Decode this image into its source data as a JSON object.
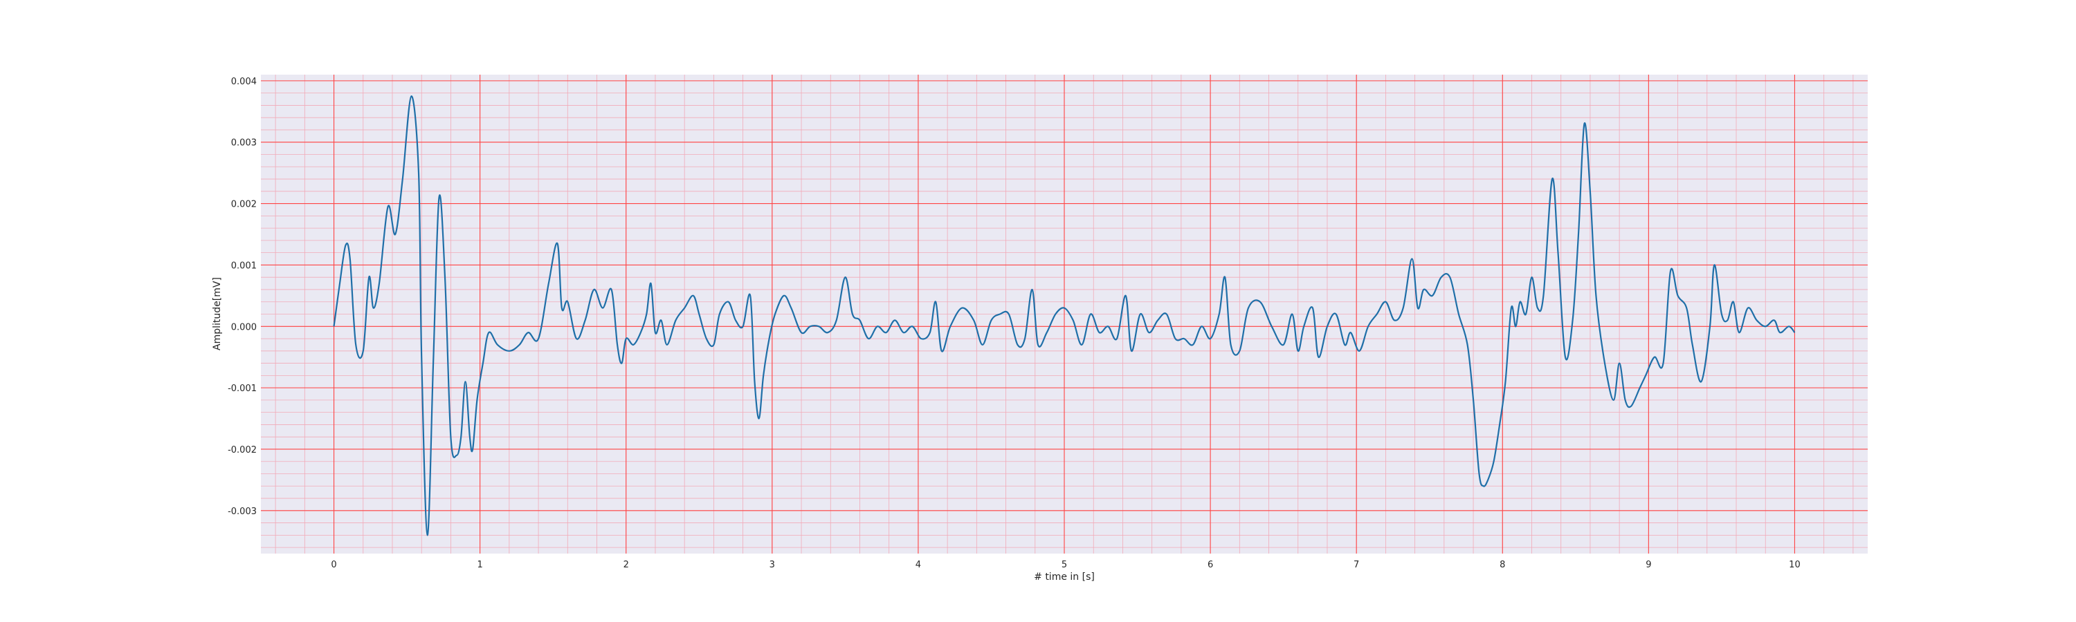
{
  "chart_data": {
    "type": "line",
    "title": "",
    "xlabel": "# time in [s]",
    "ylabel": "Amplitude[mV]",
    "xlim": [
      -0.5,
      10.5
    ],
    "ylim": [
      -0.0037,
      0.0041
    ],
    "x_ticks": [
      0,
      1,
      2,
      3,
      4,
      5,
      6,
      7,
      8,
      9,
      10
    ],
    "x_tick_labels": [
      "0",
      "1",
      "2",
      "3",
      "4",
      "5",
      "6",
      "7",
      "8",
      "9",
      "10"
    ],
    "y_ticks": [
      -0.003,
      -0.002,
      -0.001,
      0.0,
      0.001,
      0.002,
      0.003,
      0.004
    ],
    "y_tick_labels": [
      "-0.003",
      "-0.002",
      "-0.001",
      "0.000",
      "0.001",
      "0.002",
      "0.003",
      "0.004"
    ],
    "grid": {
      "major": true,
      "minor": true,
      "major_color": "#ff4444",
      "minor_color": "#f2aab8"
    },
    "background_color": "#eae9f3",
    "series": [
      {
        "color": "#1f6fa8",
        "points": [
          [
            0.0,
            0.0
          ],
          [
            0.04,
            0.0007
          ],
          [
            0.08,
            0.00132
          ],
          [
            0.11,
            0.0011
          ],
          [
            0.15,
            -0.0003
          ],
          [
            0.2,
            -0.0004
          ],
          [
            0.24,
            0.0008
          ],
          [
            0.27,
            0.0003
          ],
          [
            0.31,
            0.0007
          ],
          [
            0.37,
            0.00195
          ],
          [
            0.42,
            0.0015
          ],
          [
            0.47,
            0.0024
          ],
          [
            0.53,
            0.00375
          ],
          [
            0.58,
            0.0025
          ],
          [
            0.6,
            -0.0005
          ],
          [
            0.64,
            -0.0034
          ],
          [
            0.68,
            -0.0006
          ],
          [
            0.72,
            0.0021
          ],
          [
            0.76,
            0.0008
          ],
          [
            0.8,
            -0.0018
          ],
          [
            0.84,
            -0.0021
          ],
          [
            0.87,
            -0.0018
          ],
          [
            0.9,
            -0.0009
          ],
          [
            0.93,
            -0.0018
          ],
          [
            0.95,
            -0.002
          ],
          [
            0.98,
            -0.0012
          ],
          [
            1.02,
            -0.0006
          ],
          [
            1.06,
            -0.0001
          ],
          [
            1.12,
            -0.0003
          ],
          [
            1.2,
            -0.0004
          ],
          [
            1.27,
            -0.0003
          ],
          [
            1.33,
            -0.0001
          ],
          [
            1.4,
            -0.0002
          ],
          [
            1.47,
            0.0007
          ],
          [
            1.53,
            0.00135
          ],
          [
            1.56,
            0.0003
          ],
          [
            1.6,
            0.0004
          ],
          [
            1.66,
            -0.0002
          ],
          [
            1.72,
            0.0001
          ],
          [
            1.78,
            0.0006
          ],
          [
            1.84,
            0.0003
          ],
          [
            1.9,
            0.0006
          ],
          [
            1.94,
            -0.0003
          ],
          [
            1.97,
            -0.0006
          ],
          [
            2.0,
            -0.0002
          ],
          [
            2.05,
            -0.0003
          ],
          [
            2.1,
            -0.0001
          ],
          [
            2.14,
            0.0002
          ],
          [
            2.17,
            0.0007
          ],
          [
            2.2,
            -0.0001
          ],
          [
            2.24,
            0.0001
          ],
          [
            2.28,
            -0.0003
          ],
          [
            2.34,
            0.0001
          ],
          [
            2.4,
            0.0003
          ],
          [
            2.46,
            0.0005
          ],
          [
            2.5,
            0.0002
          ],
          [
            2.55,
            -0.0002
          ],
          [
            2.6,
            -0.0003
          ],
          [
            2.64,
            0.0002
          ],
          [
            2.7,
            0.0004
          ],
          [
            2.75,
            0.0001
          ],
          [
            2.8,
            0.0
          ],
          [
            2.85,
            0.0005
          ],
          [
            2.88,
            -0.0009
          ],
          [
            2.91,
            -0.0015
          ],
          [
            2.94,
            -0.0008
          ],
          [
            2.98,
            -0.0002
          ],
          [
            3.02,
            0.0002
          ],
          [
            3.08,
            0.0005
          ],
          [
            3.13,
            0.0003
          ],
          [
            3.2,
            -0.0001
          ],
          [
            3.26,
            0.0
          ],
          [
            3.32,
            0.0
          ],
          [
            3.38,
            -0.0001
          ],
          [
            3.44,
            0.0001
          ],
          [
            3.5,
            0.0008
          ],
          [
            3.55,
            0.0002
          ],
          [
            3.6,
            0.0001
          ],
          [
            3.66,
            -0.0002
          ],
          [
            3.72,
            0.0
          ],
          [
            3.78,
            -0.0001
          ],
          [
            3.84,
            0.0001
          ],
          [
            3.9,
            -0.0001
          ],
          [
            3.96,
            0.0
          ],
          [
            4.02,
            -0.0002
          ],
          [
            4.08,
            -0.0001
          ],
          [
            4.12,
            0.0004
          ],
          [
            4.16,
            -0.0004
          ],
          [
            4.22,
            0.0
          ],
          [
            4.3,
            0.0003
          ],
          [
            4.38,
            0.0001
          ],
          [
            4.44,
            -0.0003
          ],
          [
            4.5,
            0.0001
          ],
          [
            4.56,
            0.0002
          ],
          [
            4.62,
            0.0002
          ],
          [
            4.68,
            -0.0003
          ],
          [
            4.73,
            -0.0002
          ],
          [
            4.78,
            0.0006
          ],
          [
            4.82,
            -0.0003
          ],
          [
            4.88,
            -0.0001
          ],
          [
            4.94,
            0.0002
          ],
          [
            5.0,
            0.0003
          ],
          [
            5.06,
            0.0001
          ],
          [
            5.12,
            -0.0003
          ],
          [
            5.18,
            0.0002
          ],
          [
            5.24,
            -0.0001
          ],
          [
            5.3,
            0.0
          ],
          [
            5.36,
            -0.0002
          ],
          [
            5.42,
            0.0005
          ],
          [
            5.46,
            -0.0004
          ],
          [
            5.52,
            0.0002
          ],
          [
            5.58,
            -0.0001
          ],
          [
            5.64,
            0.0001
          ],
          [
            5.7,
            0.0002
          ],
          [
            5.76,
            -0.0002
          ],
          [
            5.82,
            -0.0002
          ],
          [
            5.88,
            -0.0003
          ],
          [
            5.94,
            0.0
          ],
          [
            6.0,
            -0.0002
          ],
          [
            6.06,
            0.0002
          ],
          [
            6.1,
            0.0008
          ],
          [
            6.14,
            -0.0003
          ],
          [
            6.2,
            -0.0004
          ],
          [
            6.26,
            0.0003
          ],
          [
            6.34,
            0.0004
          ],
          [
            6.42,
            0.0
          ],
          [
            6.5,
            -0.0003
          ],
          [
            6.56,
            0.0002
          ],
          [
            6.6,
            -0.0004
          ],
          [
            6.64,
            0.0
          ],
          [
            6.7,
            0.0003
          ],
          [
            6.74,
            -0.0005
          ],
          [
            6.8,
            0.0
          ],
          [
            6.86,
            0.0002
          ],
          [
            6.92,
            -0.0003
          ],
          [
            6.96,
            -0.0001
          ],
          [
            7.02,
            -0.0004
          ],
          [
            7.08,
            0.0
          ],
          [
            7.14,
            0.0002
          ],
          [
            7.2,
            0.0004
          ],
          [
            7.26,
            0.0001
          ],
          [
            7.32,
            0.0003
          ],
          [
            7.38,
            0.0011
          ],
          [
            7.42,
            0.0003
          ],
          [
            7.46,
            0.0006
          ],
          [
            7.52,
            0.0005
          ],
          [
            7.58,
            0.0008
          ],
          [
            7.64,
            0.0008
          ],
          [
            7.7,
            0.0002
          ],
          [
            7.76,
            -0.0003
          ],
          [
            7.8,
            -0.0012
          ],
          [
            7.84,
            -0.0024
          ],
          [
            7.87,
            -0.0026
          ],
          [
            7.9,
            -0.0025
          ],
          [
            7.94,
            -0.0022
          ],
          [
            7.98,
            -0.0016
          ],
          [
            8.02,
            -0.0009
          ],
          [
            8.06,
            0.0003
          ],
          [
            8.09,
            0.0
          ],
          [
            8.12,
            0.0004
          ],
          [
            8.16,
            0.0002
          ],
          [
            8.2,
            0.0008
          ],
          [
            8.24,
            0.0003
          ],
          [
            8.28,
            0.0005
          ],
          [
            8.34,
            0.0024
          ],
          [
            8.38,
            0.0012
          ],
          [
            8.43,
            -0.0005
          ],
          [
            8.48,
            0.0001
          ],
          [
            8.52,
            0.0015
          ],
          [
            8.56,
            0.0033
          ],
          [
            8.6,
            0.0022
          ],
          [
            8.64,
            0.0005
          ],
          [
            8.7,
            -0.0006
          ],
          [
            8.76,
            -0.0012
          ],
          [
            8.8,
            -0.0006
          ],
          [
            8.84,
            -0.0012
          ],
          [
            8.88,
            -0.0013
          ],
          [
            8.94,
            -0.001
          ],
          [
            8.98,
            -0.0008
          ],
          [
            9.04,
            -0.0005
          ],
          [
            9.1,
            -0.0006
          ],
          [
            9.15,
            0.0009
          ],
          [
            9.2,
            0.0005
          ],
          [
            9.26,
            0.0003
          ],
          [
            9.3,
            -0.0003
          ],
          [
            9.36,
            -0.0009
          ],
          [
            9.42,
            0.0
          ],
          [
            9.45,
            0.001
          ],
          [
            9.5,
            0.0002
          ],
          [
            9.54,
            0.0001
          ],
          [
            9.58,
            0.0004
          ],
          [
            9.62,
            -0.0001
          ],
          [
            9.68,
            0.0003
          ],
          [
            9.74,
            0.0001
          ],
          [
            9.8,
            0.0
          ],
          [
            9.86,
            0.0001
          ],
          [
            9.9,
            -0.0001
          ],
          [
            9.96,
            0.0
          ],
          [
            10.0,
            -0.0001
          ]
        ]
      }
    ]
  }
}
